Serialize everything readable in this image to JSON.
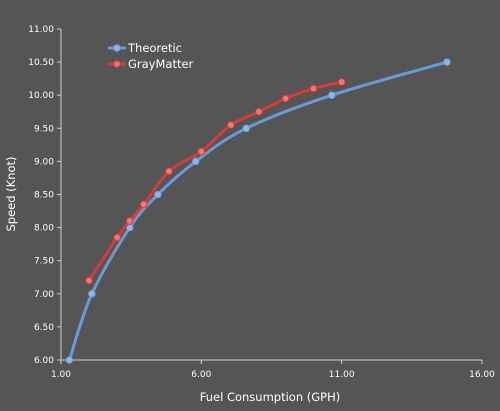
{
  "chart_data": {
    "type": "line",
    "xlabel": "Fuel Consumption (GPH)",
    "ylabel": "Speed (Knot)",
    "xlim": [
      1,
      16
    ],
    "ylim": [
      6,
      11
    ],
    "x_ticks": [
      "1.00",
      "6.00",
      "11.00",
      "16.00"
    ],
    "y_ticks": [
      "6.00",
      "6.50",
      "7.00",
      "7.50",
      "8.00",
      "8.50",
      "9.00",
      "9.50",
      "10.00",
      "10.50",
      "11.00"
    ],
    "legend_position": "top-left",
    "grid": false,
    "series": [
      {
        "name": "Theoretic",
        "color": "#6a9bd8",
        "marker_color": "#8db8ee",
        "points": [
          [
            1.3,
            6.0
          ],
          [
            2.1,
            7.0
          ],
          [
            3.45,
            8.0
          ],
          [
            4.45,
            8.5
          ],
          [
            5.8,
            9.0
          ],
          [
            7.6,
            9.5
          ],
          [
            10.65,
            10.0
          ],
          [
            14.75,
            10.5
          ]
        ]
      },
      {
        "name": "GrayMatter",
        "color": "#d93a3a",
        "marker_color": "#f07a7a",
        "points": [
          [
            2.0,
            7.2
          ],
          [
            3.0,
            7.85
          ],
          [
            3.45,
            8.1
          ],
          [
            3.95,
            8.35
          ],
          [
            4.85,
            8.85
          ],
          [
            6.0,
            9.15
          ],
          [
            7.05,
            9.55
          ],
          [
            8.05,
            9.75
          ],
          [
            9.0,
            9.95
          ],
          [
            10.0,
            10.1
          ],
          [
            11.0,
            10.2
          ]
        ]
      }
    ]
  }
}
